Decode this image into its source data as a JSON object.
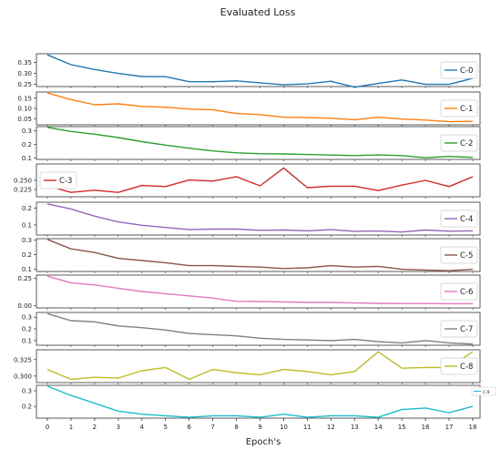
{
  "chart_data": {
    "type": "line",
    "title": "Evaluated Loss",
    "xlabel": "Epoch's",
    "x": [
      0,
      1,
      2,
      3,
      4,
      5,
      6,
      7,
      8,
      9,
      10,
      11,
      12,
      13,
      14,
      15,
      16,
      17,
      18
    ],
    "panels": [
      {
        "name": "C-0",
        "color": "#1f77b4",
        "ylim": [
          0.24,
          0.39
        ],
        "yticks": [
          0.25,
          0.3,
          0.35
        ],
        "ytick_labels": [
          "0.25",
          "0.30",
          "0.35"
        ],
        "values": [
          0.385,
          0.34,
          0.318,
          0.3,
          0.286,
          0.285,
          0.262,
          0.262,
          0.266,
          0.257,
          0.248,
          0.252,
          0.264,
          0.237,
          0.254,
          0.27,
          0.25,
          0.25,
          0.278
        ]
      },
      {
        "name": "C-1",
        "color": "#ff7f0e",
        "ylim": [
          0.02,
          0.18
        ],
        "yticks": [
          0.05,
          0.1,
          0.15
        ],
        "ytick_labels": [
          "0.05",
          "0.10",
          "0.15"
        ],
        "values": [
          0.175,
          0.143,
          0.118,
          0.122,
          0.11,
          0.106,
          0.097,
          0.093,
          0.075,
          0.07,
          0.057,
          0.055,
          0.052,
          0.045,
          0.057,
          0.048,
          0.043,
          0.035,
          0.037
        ]
      },
      {
        "name": "C-2",
        "color": "#2ca02c",
        "ylim": [
          0.09,
          0.33
        ],
        "yticks": [
          0.1,
          0.2,
          0.3
        ],
        "ytick_labels": [
          "0.1",
          "0.2",
          "0.3"
        ],
        "values": [
          0.325,
          0.295,
          0.275,
          0.25,
          0.22,
          0.195,
          0.172,
          0.152,
          0.138,
          0.132,
          0.13,
          0.126,
          0.122,
          0.118,
          0.123,
          0.118,
          0.102,
          0.112,
          0.105
        ]
      },
      {
        "name": "C-3",
        "color": "#d62728",
        "ylim": [
          0.205,
          0.295
        ],
        "yticks": [
          0.225,
          0.25
        ],
        "ytick_labels": [
          "0.225",
          "0.250"
        ],
        "values": [
          0.235,
          0.217,
          0.223,
          0.217,
          0.236,
          0.233,
          0.251,
          0.248,
          0.26,
          0.235,
          0.284,
          0.23,
          0.234,
          0.234,
          0.222,
          0.237,
          0.25,
          0.233,
          0.26
        ]
      },
      {
        "name": "C-4",
        "color": "#9467bd",
        "ylim": [
          0.04,
          0.235
        ],
        "yticks": [
          0.1,
          0.2
        ],
        "ytick_labels": [
          "0.1",
          "0.2"
        ],
        "values": [
          0.225,
          0.195,
          0.152,
          0.118,
          0.098,
          0.085,
          0.072,
          0.075,
          0.075,
          0.068,
          0.07,
          0.065,
          0.072,
          0.062,
          0.064,
          0.058,
          0.07,
          0.063,
          0.065
        ]
      },
      {
        "name": "C-5",
        "color": "#8c564b",
        "ylim": [
          0.085,
          0.31
        ],
        "yticks": [
          0.1,
          0.2,
          0.3
        ],
        "ytick_labels": [
          "0.1",
          "0.2",
          "0.3"
        ],
        "values": [
          0.305,
          0.24,
          0.215,
          0.175,
          0.16,
          0.145,
          0.125,
          0.125,
          0.12,
          0.115,
          0.105,
          0.11,
          0.125,
          0.115,
          0.12,
          0.1,
          0.095,
          0.09,
          0.1
        ]
      },
      {
        "name": "C-6",
        "color": "#e377c2",
        "ylim": [
          -0.02,
          0.28
        ],
        "yticks": [
          0.0,
          0.25
        ],
        "ytick_labels": [
          "0.00",
          "0.25"
        ],
        "values": [
          0.27,
          0.21,
          0.19,
          0.16,
          0.13,
          0.11,
          0.09,
          0.07,
          0.04,
          0.038,
          0.035,
          0.03,
          0.03,
          0.025,
          0.022,
          0.02,
          0.02,
          0.018,
          0.018
        ]
      },
      {
        "name": "C-7",
        "color": "#7f7f7f",
        "ylim": [
          0.06,
          0.34
        ],
        "yticks": [
          0.1,
          0.2,
          0.3
        ],
        "ytick_labels": [
          "0.1",
          "0.2",
          "0.3"
        ],
        "values": [
          0.33,
          0.27,
          0.26,
          0.225,
          0.21,
          0.19,
          0.16,
          0.15,
          0.14,
          0.12,
          0.11,
          0.105,
          0.1,
          0.11,
          0.09,
          0.08,
          0.1,
          0.08,
          0.07
        ]
      },
      {
        "name": "C-8",
        "color": "#bcbd22",
        "ylim": [
          0.29,
          0.34
        ],
        "yticks": [
          0.3,
          0.325
        ],
        "ytick_labels": [
          "0.300",
          "0.325"
        ],
        "values": [
          0.31,
          0.295,
          0.298,
          0.297,
          0.308,
          0.313,
          0.295,
          0.31,
          0.305,
          0.302,
          0.31,
          0.307,
          0.302,
          0.307,
          0.337,
          0.312,
          0.313,
          0.313,
          0.337
        ]
      },
      {
        "name": "C-9",
        "color": "#17becf",
        "ylim": [
          0.125,
          0.335
        ],
        "yticks": [
          0.2,
          0.3
        ],
        "ytick_labels": [
          "0.2",
          "0.3"
        ],
        "values": [
          0.33,
          0.27,
          0.22,
          0.17,
          0.15,
          0.14,
          0.13,
          0.14,
          0.14,
          0.13,
          0.15,
          0.13,
          0.14,
          0.14,
          0.13,
          0.18,
          0.19,
          0.16,
          0.2
        ]
      }
    ]
  }
}
